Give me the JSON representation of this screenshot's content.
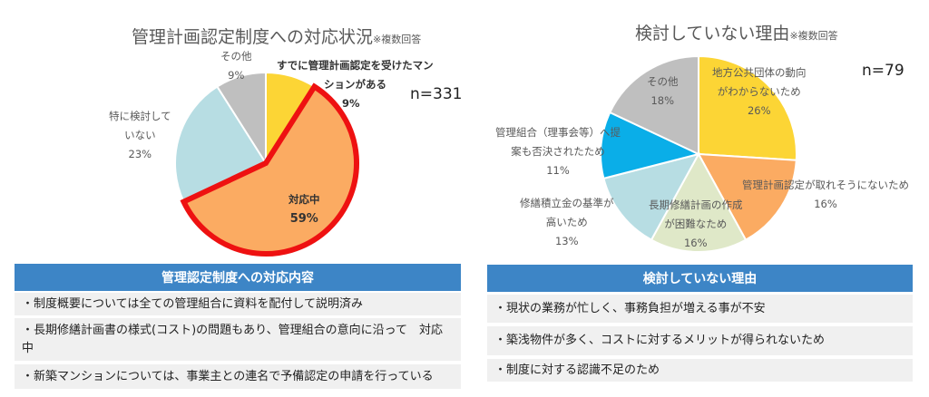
{
  "chart_data": [
    {
      "type": "pie",
      "title": "管理計画認定制度への対応状況",
      "title_note": "※複数回答",
      "n_label": "n=331",
      "slices": [
        {
          "label": "すでに管理計画認定を受けたマンションがある",
          "label_lines": [
            "すでに管理計画認定を受けたマン",
            "ションがある"
          ],
          "value": 9,
          "pct": "9%",
          "color": "#fcd535"
        },
        {
          "label": "対応中",
          "label_lines": [
            "対応中"
          ],
          "value": 59,
          "pct": "59%",
          "color": "#fbab62",
          "highlight": "#ee1111"
        },
        {
          "label": "特に検討していない",
          "label_lines": [
            "特に検討して",
            "いない"
          ],
          "value": 23,
          "pct": "23%",
          "color": "#b7dde3"
        },
        {
          "label": "その他",
          "label_lines": [
            "その他"
          ],
          "value": 9,
          "pct": "9%",
          "color": "#bfbfbf"
        }
      ]
    },
    {
      "type": "pie",
      "title": "検討していない理由",
      "title_note": "※複数回答",
      "n_label": "n=79",
      "slices": [
        {
          "label": "地方公共団体の動向がわからないため",
          "label_lines": [
            "地方公共団体の動向",
            "がわからないため"
          ],
          "value": 26,
          "pct": "26%",
          "color": "#fcd535"
        },
        {
          "label": "管理計画認定が取れそうにないため",
          "label_lines": [
            "管理計画認定が取れそうにないため"
          ],
          "value": 16,
          "pct": "16%",
          "color": "#fbab62"
        },
        {
          "label": "長期修繕計画の作成が困難なため",
          "label_lines": [
            "長期修繕計画の作成",
            "が困難なため"
          ],
          "value": 16,
          "pct": "16%",
          "color": "#dfe8c8"
        },
        {
          "label": "修繕積立金の基準が高いため",
          "label_lines": [
            "修繕積立金の基準が",
            "高いため"
          ],
          "value": 13,
          "pct": "13%",
          "color": "#b7dde3"
        },
        {
          "label": "管理組合（理事会等）へ提案も否決されたため",
          "label_lines": [
            "管理組合（理事会等）へ提",
            "案も否決されたため"
          ],
          "value": 11,
          "pct": "11%",
          "color": "#0aaee8"
        },
        {
          "label": "その他",
          "label_lines": [
            "その他"
          ],
          "value": 18,
          "pct": "18%",
          "color": "#bfbfbf"
        }
      ]
    }
  ],
  "left_panel": {
    "header": "管理認定制度への対応内容",
    "items": [
      "・制度概要については全ての管理組合に資料を配付して説明済み",
      "・長期修繕計画書の様式(コスト)の問題もあり、管理組合の意向に沿って　対応中",
      "・新築マンションについては、事業主との連名で予備認定の申請を行っている"
    ]
  },
  "right_panel": {
    "header": "検討していない理由",
    "items": [
      "・現状の業務が忙しく、事務負担が増える事が不安",
      "・築浅物件が多く、コストに対するメリットが得られないため",
      "・制度に対する認識不足のため"
    ]
  },
  "colors": {
    "header_bg": "#3d85c6",
    "row_bg": "#f0f0f0"
  }
}
